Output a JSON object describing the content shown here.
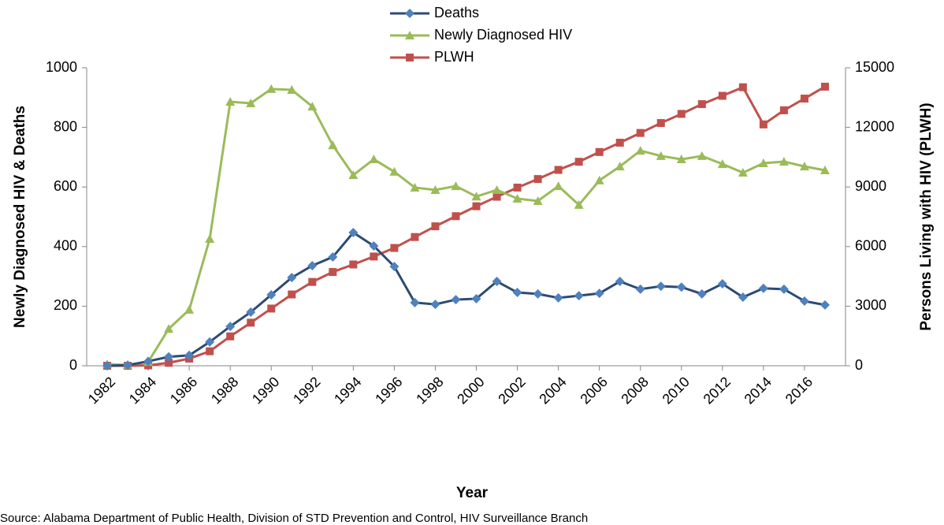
{
  "chart_data": {
    "type": "line",
    "x": [
      1982,
      1983,
      1984,
      1985,
      1986,
      1987,
      1988,
      1989,
      1990,
      1991,
      1992,
      1993,
      1994,
      1995,
      1996,
      1997,
      1998,
      1999,
      2000,
      2001,
      2002,
      2003,
      2004,
      2005,
      2006,
      2007,
      2008,
      2009,
      2010,
      2011,
      2012,
      2013,
      2014,
      2015,
      2016,
      2017
    ],
    "xlim": [
      1981,
      2018
    ],
    "xticks": [
      1982,
      1984,
      1986,
      1988,
      1990,
      1992,
      1994,
      1996,
      1998,
      2000,
      2002,
      2004,
      2006,
      2008,
      2010,
      2012,
      2014,
      2016
    ],
    "xlabel": "Year",
    "ylabel": "Newly Diagnosed HIV & Deaths",
    "y2label": "Persons Living with HIV (PLWH)",
    "ylim": [
      0,
      1000
    ],
    "yticks": [
      0,
      200,
      400,
      600,
      800,
      1000
    ],
    "y2lim": [
      0,
      15000
    ],
    "y2ticks": [
      0,
      3000,
      6000,
      9000,
      12000,
      15000
    ],
    "legend": "top",
    "series": [
      {
        "name": "Deaths",
        "color": "#2c4a74",
        "marker_color": "#4f81bd",
        "marker": "diamond",
        "values": [
          0,
          2,
          15,
          30,
          35,
          80,
          132,
          180,
          238,
          296,
          336,
          365,
          447,
          402,
          333,
          212,
          206,
          222,
          225,
          283,
          246,
          241,
          228,
          235,
          243,
          283,
          257,
          267,
          264,
          241,
          275,
          230,
          260,
          257,
          217,
          204
        ]
      },
      {
        "name": "Newly Diagnosed HIV",
        "color": "#9bbb59",
        "marker_color": "#9bbb59",
        "marker": "triangle",
        "values": [
          5,
          3,
          13,
          124,
          188,
          426,
          886,
          881,
          929,
          926,
          870,
          740,
          640,
          693,
          651,
          598,
          590,
          603,
          568,
          590,
          561,
          553,
          603,
          540,
          622,
          669,
          722,
          704,
          693,
          704,
          677,
          648,
          680,
          685,
          669,
          656
        ]
      },
      {
        "name": "PLWH",
        "color": "#c0504d",
        "marker_color": "#c0504d",
        "marker": "square",
        "axis": "y2",
        "values": [
          0,
          0,
          20,
          150,
          360,
          730,
          1480,
          2170,
          2880,
          3590,
          4220,
          4720,
          5100,
          5500,
          5930,
          6480,
          7020,
          7530,
          8030,
          8510,
          8970,
          9400,
          9860,
          10270,
          10760,
          11230,
          11720,
          12220,
          12680,
          13170,
          13590,
          14020,
          12150,
          12860,
          13450,
          14050
        ]
      }
    ],
    "source": "Source: Alabama Department of Public Health, Division of STD Prevention and Control, HIV Surveillance Branch"
  }
}
